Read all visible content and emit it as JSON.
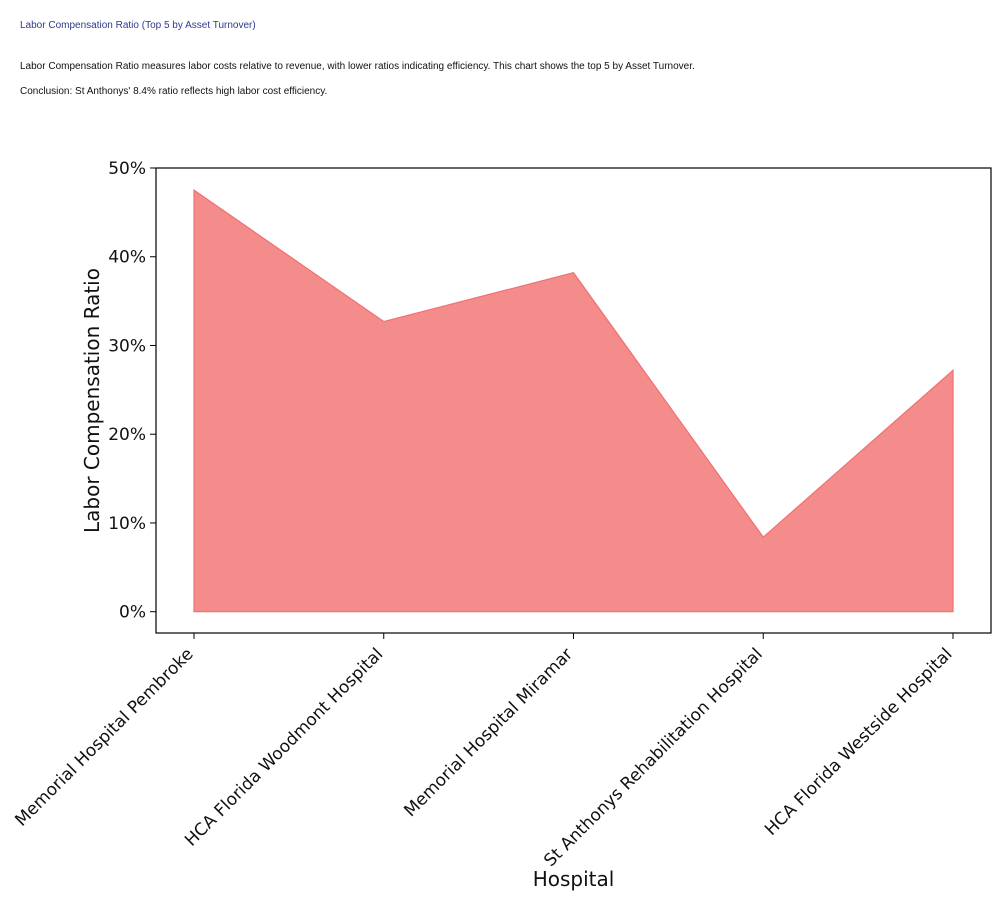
{
  "header": {
    "title": "Labor Compensation Ratio (Top 5 by Asset Turnover)",
    "description": "Labor Compensation Ratio measures labor costs relative to revenue, with lower ratios indicating efficiency. This chart shows the top 5 by Asset Turnover.",
    "conclusion": "Conclusion: St Anthonys' 8.4% ratio reflects high labor cost efficiency."
  },
  "chart_data": {
    "type": "area",
    "categories": [
      "Memorial Hospital Pembroke",
      "HCA Florida Woodmont Hospital",
      "Memorial Hospital Miramar",
      "St Anthonys Rehabilitation Hospital",
      "HCA Florida Westside Hospital"
    ],
    "values": [
      47.5,
      32.7,
      38.2,
      8.4,
      27.2
    ],
    "xlabel": "Hospital",
    "ylabel": "Labor Compensation Ratio",
    "ylim": [
      -2.4,
      50
    ],
    "yticks": [
      0,
      10,
      20,
      30,
      40,
      50
    ],
    "ytick_labels": [
      "0%",
      "10%",
      "20%",
      "30%",
      "40%",
      "50%"
    ],
    "grid": false,
    "legend": "none",
    "colors": {
      "fill": "#f48c8c",
      "line": "#f07070",
      "axis": "#000000"
    }
  }
}
